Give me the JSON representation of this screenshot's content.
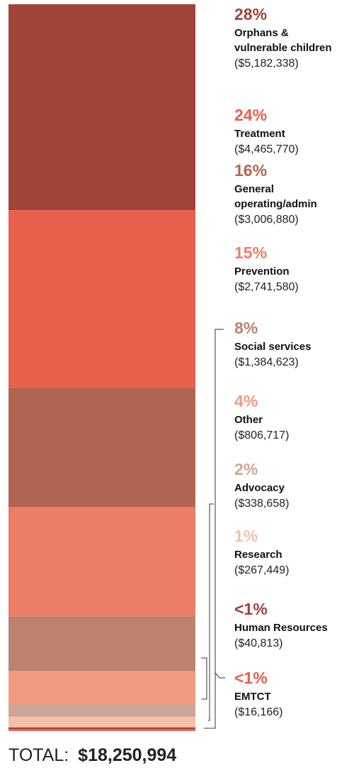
{
  "chart_data": {
    "type": "bar",
    "stacked": true,
    "segments": [
      {
        "pct": "28%",
        "label_lines": [
          "Orphans &",
          "vulnerable children"
        ],
        "amount": "($5,182,338)",
        "value": 5182338,
        "color": "#a04338",
        "pct_color": "#a04338"
      },
      {
        "pct": "24%",
        "label_lines": [
          "Treatment"
        ],
        "amount": "($4,465,770)",
        "value": 4465770,
        "color": "#e8604c",
        "pct_color": "#e8604c"
      },
      {
        "pct": "16%",
        "label_lines": [
          "General",
          "operating/admin"
        ],
        "amount": "($3,006,880)",
        "value": 3006880,
        "color": "#b06452",
        "pct_color": "#b06452"
      },
      {
        "pct": "15%",
        "label_lines": [
          "Prevention"
        ],
        "amount": "($2,741,580)",
        "value": 2741580,
        "color": "#ee7d67",
        "pct_color": "#ee7d67"
      },
      {
        "pct": "8%",
        "label_lines": [
          "Social services"
        ],
        "amount": "($1,384,623)",
        "value": 1384623,
        "color": "#be816f",
        "pct_color": "#be816f"
      },
      {
        "pct": "4%",
        "label_lines": [
          "Other"
        ],
        "amount": "($806,717)",
        "value": 806717,
        "color": "#f09a82",
        "pct_color": "#f09a82"
      },
      {
        "pct": "2%",
        "label_lines": [
          "Advocacy"
        ],
        "amount": "($338,658)",
        "value": 338658,
        "color": "#cfa598",
        "pct_color": "#cfa598"
      },
      {
        "pct": "1%",
        "label_lines": [
          "Research"
        ],
        "amount": "($267,449)",
        "value": 267449,
        "color": "#f7bea9",
        "pct_color": "#f7bea9"
      },
      {
        "pct": "<1%",
        "label_lines": [
          "Human Resources"
        ],
        "amount": "($40,813)",
        "value": 40813,
        "color": "#a04338",
        "pct_color": "#a04338"
      },
      {
        "pct": "<1%",
        "label_lines": [
          "EMTCT"
        ],
        "amount": "($16,166)",
        "value": 16166,
        "color": "#e8604c",
        "pct_color": "#e8604c"
      }
    ],
    "total_label": "TOTAL:",
    "total_value": "$18,250,994"
  }
}
